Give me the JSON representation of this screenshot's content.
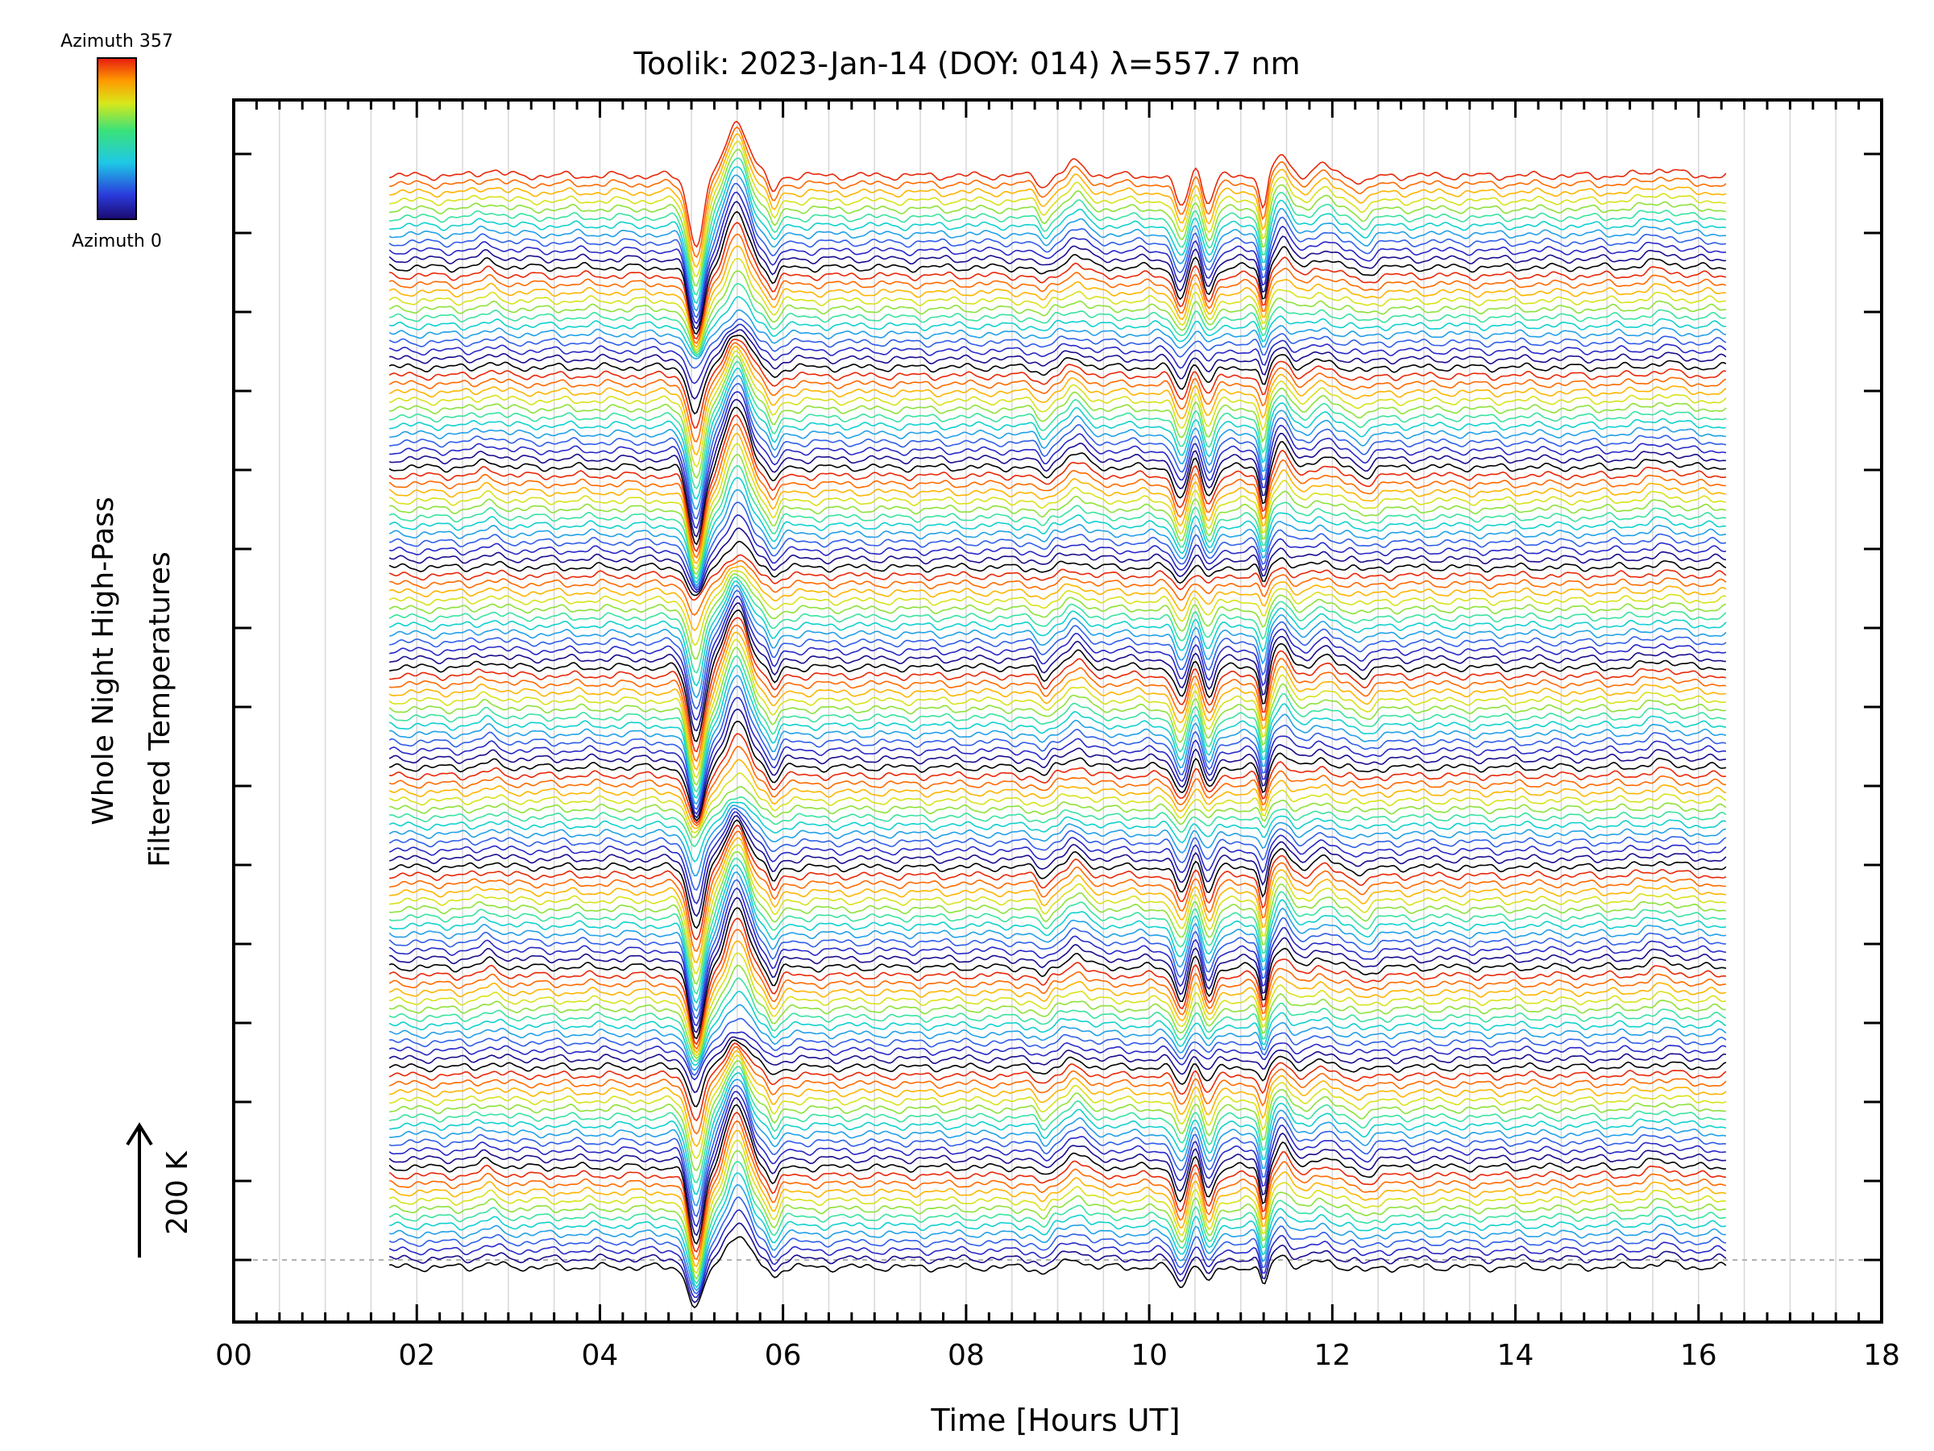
{
  "chart_data": {
    "type": "line",
    "title": "Toolik: 2023-Jan-14 (DOY: 014) λ=557.7 nm",
    "xlabel": "Time [Hours UT]",
    "ylabel_line1": "Whole Night High-Pass",
    "ylabel_line2": "Filtered Temperatures",
    "scale_label": "200 K",
    "xlim": [
      0,
      18
    ],
    "x_tick_labels": [
      "00",
      "02",
      "04",
      "06",
      "08",
      "10",
      "12",
      "14",
      "16",
      "18"
    ],
    "x_tick_values": [
      0,
      2,
      4,
      6,
      8,
      10,
      12,
      14,
      16,
      18
    ],
    "data_time_range": [
      1.7,
      16.3
    ],
    "grid": true,
    "colorbar": {
      "top_label": "Azimuth 357",
      "bottom_label": "Azimuth 0",
      "colormap": "rainbow (blue at 0 to red at 357)"
    },
    "series_description": "Stacked azimuth traces; each successive trace offset upward, colored by azimuth",
    "trace_count": 132,
    "trace_colors": [
      "#000000",
      "#1a0d8c",
      "#2828c8",
      "#2f5fe8",
      "#22a0e8",
      "#10d0d0",
      "#3ae2a0",
      "#8ce23a",
      "#d8e21a",
      "#ffb400",
      "#ff6a00",
      "#e82808"
    ],
    "notable_features": [
      {
        "time": 5.05,
        "description": "strong dip"
      },
      {
        "time": 5.5,
        "description": "strong peak"
      },
      {
        "time": 10.45,
        "description": "double dip"
      },
      {
        "time": 11.25,
        "description": "sharp dip"
      }
    ]
  }
}
